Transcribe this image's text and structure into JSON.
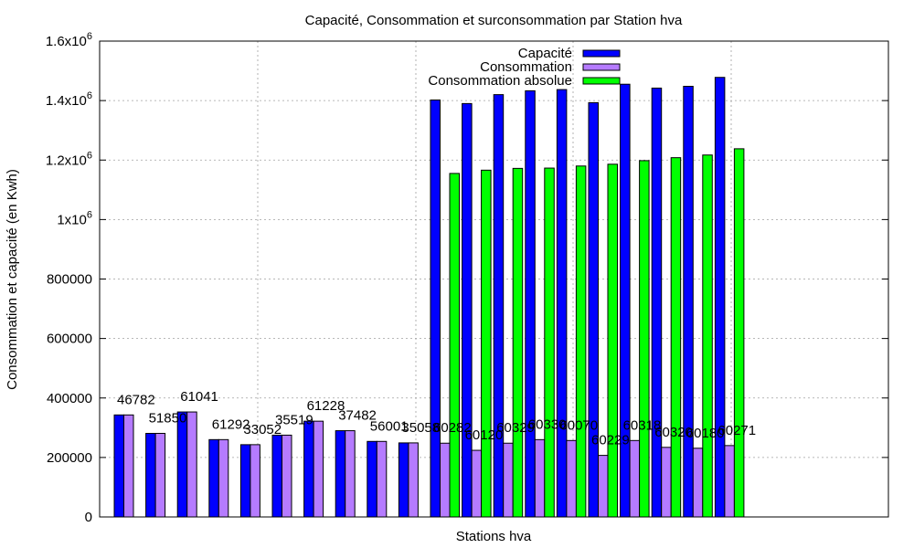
{
  "chart_data": {
    "type": "bar",
    "title": "Capacité, Consommation et surconsommation par Station hva",
    "xlabel": "Stations hva",
    "ylabel": "Consommation et capacité (en Kwh)",
    "ylim": [
      0,
      1600000
    ],
    "yticks": [
      {
        "value": 0,
        "label": "0",
        "exp": ""
      },
      {
        "value": 200000,
        "label": "200000",
        "exp": ""
      },
      {
        "value": 400000,
        "label": "400000",
        "exp": ""
      },
      {
        "value": 600000,
        "label": "600000",
        "exp": ""
      },
      {
        "value": 800000,
        "label": "800000",
        "exp": ""
      },
      {
        "value": 1000000,
        "label": "1x10",
        "exp": "6"
      },
      {
        "value": 1200000,
        "label": "1.2x10",
        "exp": "6"
      },
      {
        "value": 1400000,
        "label": "1.4x10",
        "exp": "6"
      },
      {
        "value": 1600000,
        "label": "1.6x10",
        "exp": "6"
      }
    ],
    "grid": true,
    "legend_position": "top-center",
    "categories": [
      "46782",
      "51850",
      "61041",
      "61292",
      "33052",
      "35519",
      "61228",
      "37482",
      "56001",
      "35058",
      "60282",
      "60120",
      "60329",
      "60330",
      "60070",
      "60229",
      "60318",
      "60320",
      "60180",
      "60271"
    ],
    "series": [
      {
        "name": "Capacité",
        "color": "#0000ff",
        "values": [
          343000,
          281000,
          353000,
          260000,
          243000,
          275000,
          322000,
          290000,
          254000,
          249000,
          1402000,
          1390000,
          1420000,
          1433000,
          1437000,
          1393000,
          1455000,
          1442000,
          1448000,
          1478000
        ]
      },
      {
        "name": "Consommation",
        "color": "#b57bff",
        "values": [
          343000,
          281000,
          353000,
          260000,
          243000,
          275000,
          322000,
          290000,
          254000,
          249000,
          248000,
          224000,
          248000,
          260000,
          257000,
          207000,
          257000,
          234000,
          231000,
          240000
        ]
      },
      {
        "name": "Consommation absolue",
        "color": "#00ff00",
        "values": [
          null,
          null,
          null,
          null,
          null,
          null,
          null,
          null,
          null,
          null,
          1155000,
          1166000,
          1172000,
          1173000,
          1180000,
          1186000,
          1198000,
          1208000,
          1217000,
          1238000
        ]
      }
    ]
  }
}
